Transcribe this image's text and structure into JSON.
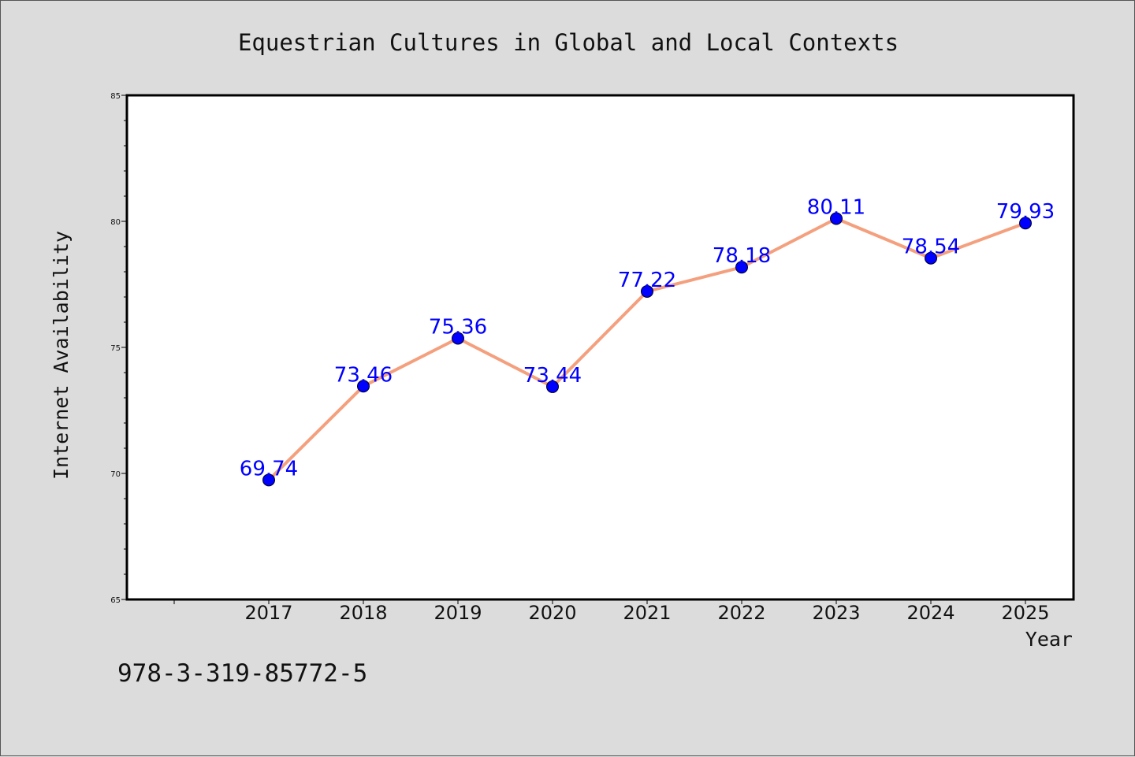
{
  "chart_data": {
    "type": "line",
    "title": "Equestrian Cultures in Global and Local Contexts",
    "xlabel": "Year",
    "ylabel": "Internet Availability",
    "categories": [
      "2017",
      "2018",
      "2019",
      "2020",
      "2021",
      "2022",
      "2023",
      "2024",
      "2025"
    ],
    "values": [
      69.74,
      73.46,
      75.36,
      73.44,
      77.22,
      78.18,
      80.11,
      78.54,
      79.93
    ],
    "data_labels": [
      "69.74",
      "73.46",
      "75.36",
      "73.44",
      "77.22",
      "78.18",
      "80.11",
      "78.54",
      "79.93"
    ],
    "ylim": [
      65,
      85
    ],
    "yticks": [
      "65",
      "70",
      "75",
      "80",
      "85"
    ],
    "grid": false,
    "line_color": "#f4a07e",
    "marker_color": "#0000ff"
  },
  "footer": {
    "code": "978-3-319-85772-5"
  }
}
